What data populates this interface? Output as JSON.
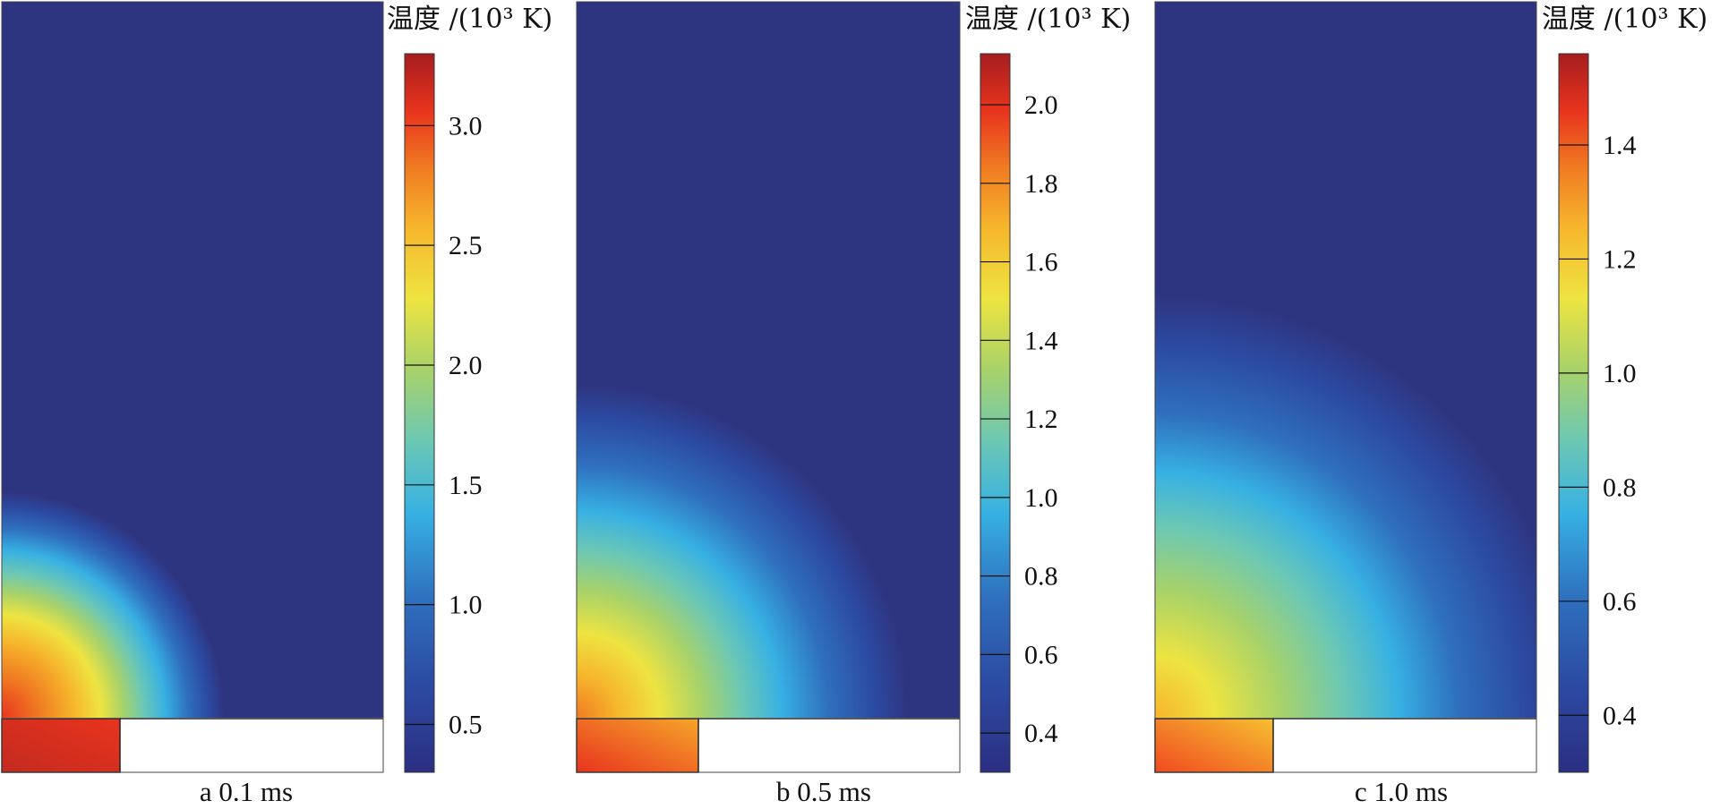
{
  "figure": {
    "colorbar_title": "温度 /(10³ K)",
    "colormap": [
      "#2b2f82",
      "#2f5fb0",
      "#35aee0",
      "#6cc8b4",
      "#a8d26a",
      "#eee440",
      "#f6b52c",
      "#f07c22",
      "#e8341e",
      "#a61d1f"
    ],
    "background_color": "#2e3580",
    "panels": [
      {
        "caption": "a  0.1 ms",
        "colorbar": {
          "min": 0.3,
          "max": 3.3,
          "ticks": [
            0.5,
            1.0,
            1.5,
            2.0,
            2.5,
            3.0
          ],
          "tick_labels": [
            "0.5",
            "1.0",
            "1.5",
            "2.0",
            "2.5",
            "3.0"
          ]
        }
      },
      {
        "caption": "b  0.5 ms",
        "colorbar": {
          "min": 0.3,
          "max": 2.13,
          "ticks": [
            0.4,
            0.6,
            0.8,
            1.0,
            1.2,
            1.4,
            1.6,
            1.8,
            2.0
          ],
          "tick_labels": [
            "0.4",
            "0.6",
            "0.8",
            "1.0",
            "1.2",
            "1.4",
            "1.6",
            "1.8",
            "2.0"
          ]
        }
      },
      {
        "caption": "c  1.0 ms",
        "colorbar": {
          "min": 0.3,
          "max": 1.56,
          "ticks": [
            0.4,
            0.6,
            0.8,
            1.0,
            1.2,
            1.4
          ],
          "tick_labels": [
            "0.4",
            "0.6",
            "0.8",
            "1.0",
            "1.2",
            "1.4"
          ]
        }
      }
    ]
  }
}
